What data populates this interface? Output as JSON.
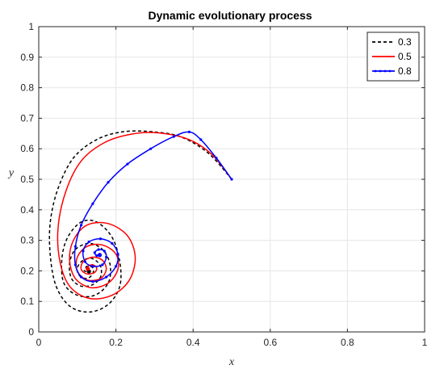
{
  "chart_data": {
    "type": "line",
    "title": "Dynamic evolutionary process",
    "xlabel": "x",
    "ylabel": "y",
    "xlim": [
      0,
      1
    ],
    "ylim": [
      0,
      1
    ],
    "xticks": [
      0,
      0.2,
      0.4,
      0.6,
      0.8,
      1
    ],
    "xtick_labels": [
      "0",
      "0.2",
      "0.4",
      "0.6",
      "0.8",
      "1"
    ],
    "yticks": [
      0,
      0.1,
      0.2,
      0.3,
      0.4,
      0.5,
      0.6,
      0.7,
      0.8,
      0.9,
      1
    ],
    "ytick_labels": [
      "0",
      "0.1",
      "0.2",
      "0.3",
      "0.4",
      "0.5",
      "0.6",
      "0.7",
      "0.8",
      "0.9",
      "1"
    ],
    "grid": true,
    "legend_position": "top-right",
    "series": [
      {
        "name": "0.3",
        "color": "#000000",
        "style": "dashed",
        "points": [
          [
            0.5,
            0.5
          ],
          [
            0.44,
            0.585
          ],
          [
            0.37,
            0.638
          ],
          [
            0.3,
            0.655
          ],
          [
            0.22,
            0.656
          ],
          [
            0.15,
            0.63
          ],
          [
            0.09,
            0.57
          ],
          [
            0.05,
            0.47
          ],
          [
            0.03,
            0.36
          ],
          [
            0.03,
            0.25
          ],
          [
            0.045,
            0.15
          ],
          [
            0.08,
            0.085
          ],
          [
            0.13,
            0.065
          ],
          [
            0.18,
            0.09
          ],
          [
            0.21,
            0.15
          ],
          [
            0.21,
            0.23
          ],
          [
            0.19,
            0.31
          ],
          [
            0.15,
            0.36
          ],
          [
            0.11,
            0.36
          ],
          [
            0.075,
            0.31
          ],
          [
            0.06,
            0.24
          ],
          [
            0.065,
            0.16
          ],
          [
            0.1,
            0.12
          ],
          [
            0.145,
            0.12
          ],
          [
            0.18,
            0.16
          ],
          [
            0.185,
            0.22
          ],
          [
            0.165,
            0.27
          ],
          [
            0.13,
            0.29
          ],
          [
            0.095,
            0.27
          ],
          [
            0.08,
            0.225
          ],
          [
            0.085,
            0.175
          ],
          [
            0.11,
            0.15
          ],
          [
            0.14,
            0.155
          ],
          [
            0.16,
            0.18
          ],
          [
            0.16,
            0.215
          ],
          [
            0.14,
            0.24
          ],
          [
            0.115,
            0.235
          ],
          [
            0.1,
            0.21
          ],
          [
            0.105,
            0.185
          ],
          [
            0.125,
            0.175
          ],
          [
            0.14,
            0.19
          ],
          [
            0.14,
            0.21
          ],
          [
            0.125,
            0.215
          ],
          [
            0.118,
            0.2
          ],
          [
            0.13,
            0.198
          ]
        ]
      },
      {
        "name": "0.5",
        "color": "#ff0000",
        "style": "solid",
        "points": [
          [
            0.5,
            0.5
          ],
          [
            0.45,
            0.58
          ],
          [
            0.39,
            0.63
          ],
          [
            0.31,
            0.652
          ],
          [
            0.24,
            0.648
          ],
          [
            0.17,
            0.62
          ],
          [
            0.11,
            0.56
          ],
          [
            0.07,
            0.46
          ],
          [
            0.05,
            0.34
          ],
          [
            0.055,
            0.23
          ],
          [
            0.08,
            0.15
          ],
          [
            0.13,
            0.11
          ],
          [
            0.19,
            0.12
          ],
          [
            0.235,
            0.17
          ],
          [
            0.25,
            0.245
          ],
          [
            0.23,
            0.315
          ],
          [
            0.18,
            0.355
          ],
          [
            0.125,
            0.35
          ],
          [
            0.09,
            0.3
          ],
          [
            0.08,
            0.235
          ],
          [
            0.095,
            0.175
          ],
          [
            0.135,
            0.145
          ],
          [
            0.18,
            0.16
          ],
          [
            0.205,
            0.205
          ],
          [
            0.2,
            0.255
          ],
          [
            0.165,
            0.285
          ],
          [
            0.125,
            0.28
          ],
          [
            0.1,
            0.245
          ],
          [
            0.1,
            0.2
          ],
          [
            0.125,
            0.17
          ],
          [
            0.16,
            0.175
          ],
          [
            0.175,
            0.205
          ],
          [
            0.165,
            0.235
          ],
          [
            0.14,
            0.245
          ],
          [
            0.115,
            0.23
          ],
          [
            0.11,
            0.205
          ],
          [
            0.125,
            0.19
          ],
          [
            0.145,
            0.195
          ],
          [
            0.15,
            0.21
          ],
          [
            0.14,
            0.22
          ],
          [
            0.128,
            0.215
          ],
          [
            0.127,
            0.207
          ]
        ]
      },
      {
        "name": "0.8",
        "color": "#0000ff",
        "style": "solid-dotted",
        "points": [
          [
            0.5,
            0.5
          ],
          [
            0.46,
            0.57
          ],
          [
            0.42,
            0.63
          ],
          [
            0.39,
            0.655
          ],
          [
            0.35,
            0.64
          ],
          [
            0.29,
            0.6
          ],
          [
            0.23,
            0.55
          ],
          [
            0.18,
            0.49
          ],
          [
            0.14,
            0.42
          ],
          [
            0.11,
            0.35
          ],
          [
            0.095,
            0.28
          ],
          [
            0.095,
            0.22
          ],
          [
            0.11,
            0.18
          ],
          [
            0.14,
            0.165
          ],
          [
            0.175,
            0.18
          ],
          [
            0.2,
            0.215
          ],
          [
            0.205,
            0.255
          ],
          [
            0.19,
            0.29
          ],
          [
            0.16,
            0.305
          ],
          [
            0.13,
            0.295
          ],
          [
            0.115,
            0.265
          ],
          [
            0.12,
            0.23
          ],
          [
            0.14,
            0.215
          ],
          [
            0.165,
            0.22
          ],
          [
            0.175,
            0.245
          ],
          [
            0.17,
            0.265
          ],
          [
            0.155,
            0.27
          ],
          [
            0.145,
            0.26
          ],
          [
            0.15,
            0.25
          ],
          [
            0.158,
            0.252
          ]
        ]
      }
    ]
  }
}
